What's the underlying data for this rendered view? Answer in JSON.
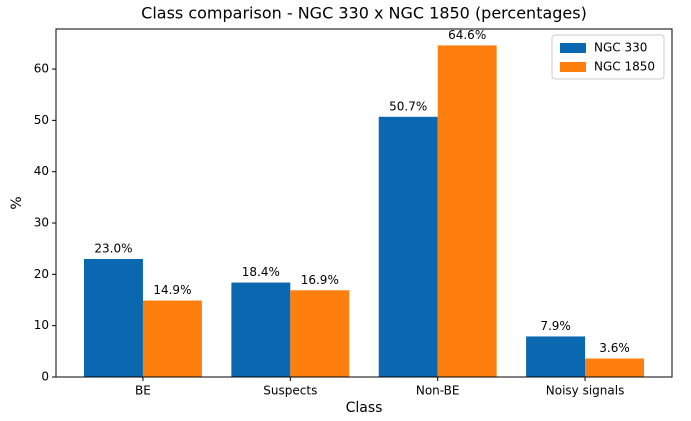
{
  "chart_data": {
    "type": "bar",
    "title": "Class comparison - NGC 330 x NGC 1850 (percentages)",
    "xlabel": "Class",
    "ylabel": "%",
    "categories": [
      "BE",
      "Suspects",
      "Non-BE",
      "Noisy signals"
    ],
    "series": [
      {
        "name": "NGC 330",
        "color": "#0a68b0",
        "values": [
          23.0,
          18.4,
          50.7,
          7.9
        ],
        "value_labels": [
          "23.0%",
          "18.4%",
          "50.7%",
          "7.9%"
        ]
      },
      {
        "name": "NGC 1850",
        "color": "#ff7f0e",
        "values": [
          14.9,
          16.9,
          64.6,
          3.6
        ],
        "value_labels": [
          "14.9%",
          "16.9%",
          "64.6%",
          "3.6%"
        ]
      }
    ],
    "ylim": [
      0,
      67.8
    ],
    "yticks": [
      0,
      10,
      20,
      30,
      40,
      50,
      60
    ],
    "legend": "upper right"
  }
}
